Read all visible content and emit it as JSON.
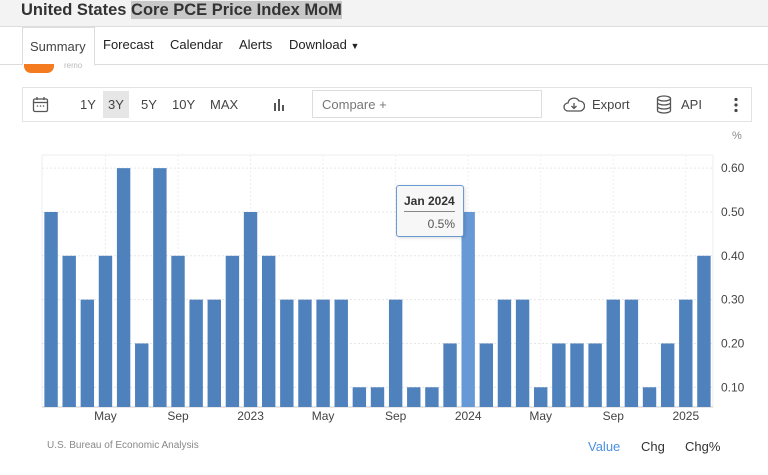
{
  "title": {
    "prefix": "United States",
    "highlight": "Core PCE Price Index MoM"
  },
  "nav": {
    "tabs": [
      "Summary",
      "Forecast",
      "Calendar",
      "Alerts",
      "Download"
    ]
  },
  "partial_text": "remo",
  "toolbar": {
    "ranges": [
      "1Y",
      "3Y",
      "5Y",
      "10Y",
      "MAX"
    ],
    "selected": "3Y",
    "compare_placeholder": "Compare +",
    "export": "Export",
    "api": "API"
  },
  "tooltip": {
    "date": "Jan 2024",
    "value": "0.5%"
  },
  "footer": {
    "source": "U.S. Bureau of Economic Analysis",
    "modes": [
      "Value",
      "Chg",
      "Chg%"
    ],
    "active_mode": "Value"
  },
  "colors": {
    "bar": "#4f81bd",
    "bar_highlight": "#6699d6",
    "accent": "#f47b20",
    "active_mode": "#4a90e2"
  },
  "chart_data": {
    "type": "bar",
    "unit": "%",
    "categories": [
      "Feb 2022",
      "Mar 2022",
      "Apr 2022",
      "May 2022",
      "Jun 2022",
      "Jul 2022",
      "Aug 2022",
      "Sep 2022",
      "Oct 2022",
      "Nov 2022",
      "Dec 2022",
      "Jan 2023",
      "Feb 2023",
      "Mar 2023",
      "Apr 2023",
      "May 2023",
      "Jun 2023",
      "Jul 2023",
      "Aug 2023",
      "Sep 2023",
      "Oct 2023",
      "Nov 2023",
      "Dec 2023",
      "Jan 2024",
      "Feb 2024",
      "Mar 2024",
      "Apr 2024",
      "May 2024",
      "Jun 2024",
      "Jul 2024",
      "Aug 2024",
      "Sep 2024",
      "Oct 2024",
      "Nov 2024",
      "Dec 2024",
      "Jan 2025",
      "Feb 2025"
    ],
    "values": [
      0.5,
      0.4,
      0.3,
      0.4,
      0.6,
      0.2,
      0.6,
      0.4,
      0.3,
      0.3,
      0.4,
      0.5,
      0.4,
      0.3,
      0.3,
      0.3,
      0.3,
      0.1,
      0.1,
      0.3,
      0.1,
      0.1,
      0.2,
      0.5,
      0.2,
      0.3,
      0.3,
      0.1,
      0.2,
      0.2,
      0.2,
      0.3,
      0.3,
      0.1,
      0.2,
      0.3,
      0.4
    ],
    "highlighted": "Jan 2024",
    "x_ticks": [
      {
        "label": "May",
        "at": "May 2022"
      },
      {
        "label": "Sep",
        "at": "Sep 2022"
      },
      {
        "label": "2023",
        "at": "Jan 2023"
      },
      {
        "label": "May",
        "at": "May 2023"
      },
      {
        "label": "Sep",
        "at": "Sep 2023"
      },
      {
        "label": "2024",
        "at": "Jan 2024"
      },
      {
        "label": "May",
        "at": "May 2024"
      },
      {
        "label": "Sep",
        "at": "Sep 2024"
      },
      {
        "label": "2025",
        "at": "Jan 2025"
      }
    ],
    "y_ticks": [
      "0.10",
      "0.20",
      "0.30",
      "0.40",
      "0.50",
      "0.60"
    ],
    "ylim": [
      0.055,
      0.63
    ],
    "ylabel": "%",
    "y_axis_side": "right",
    "grid": true
  }
}
